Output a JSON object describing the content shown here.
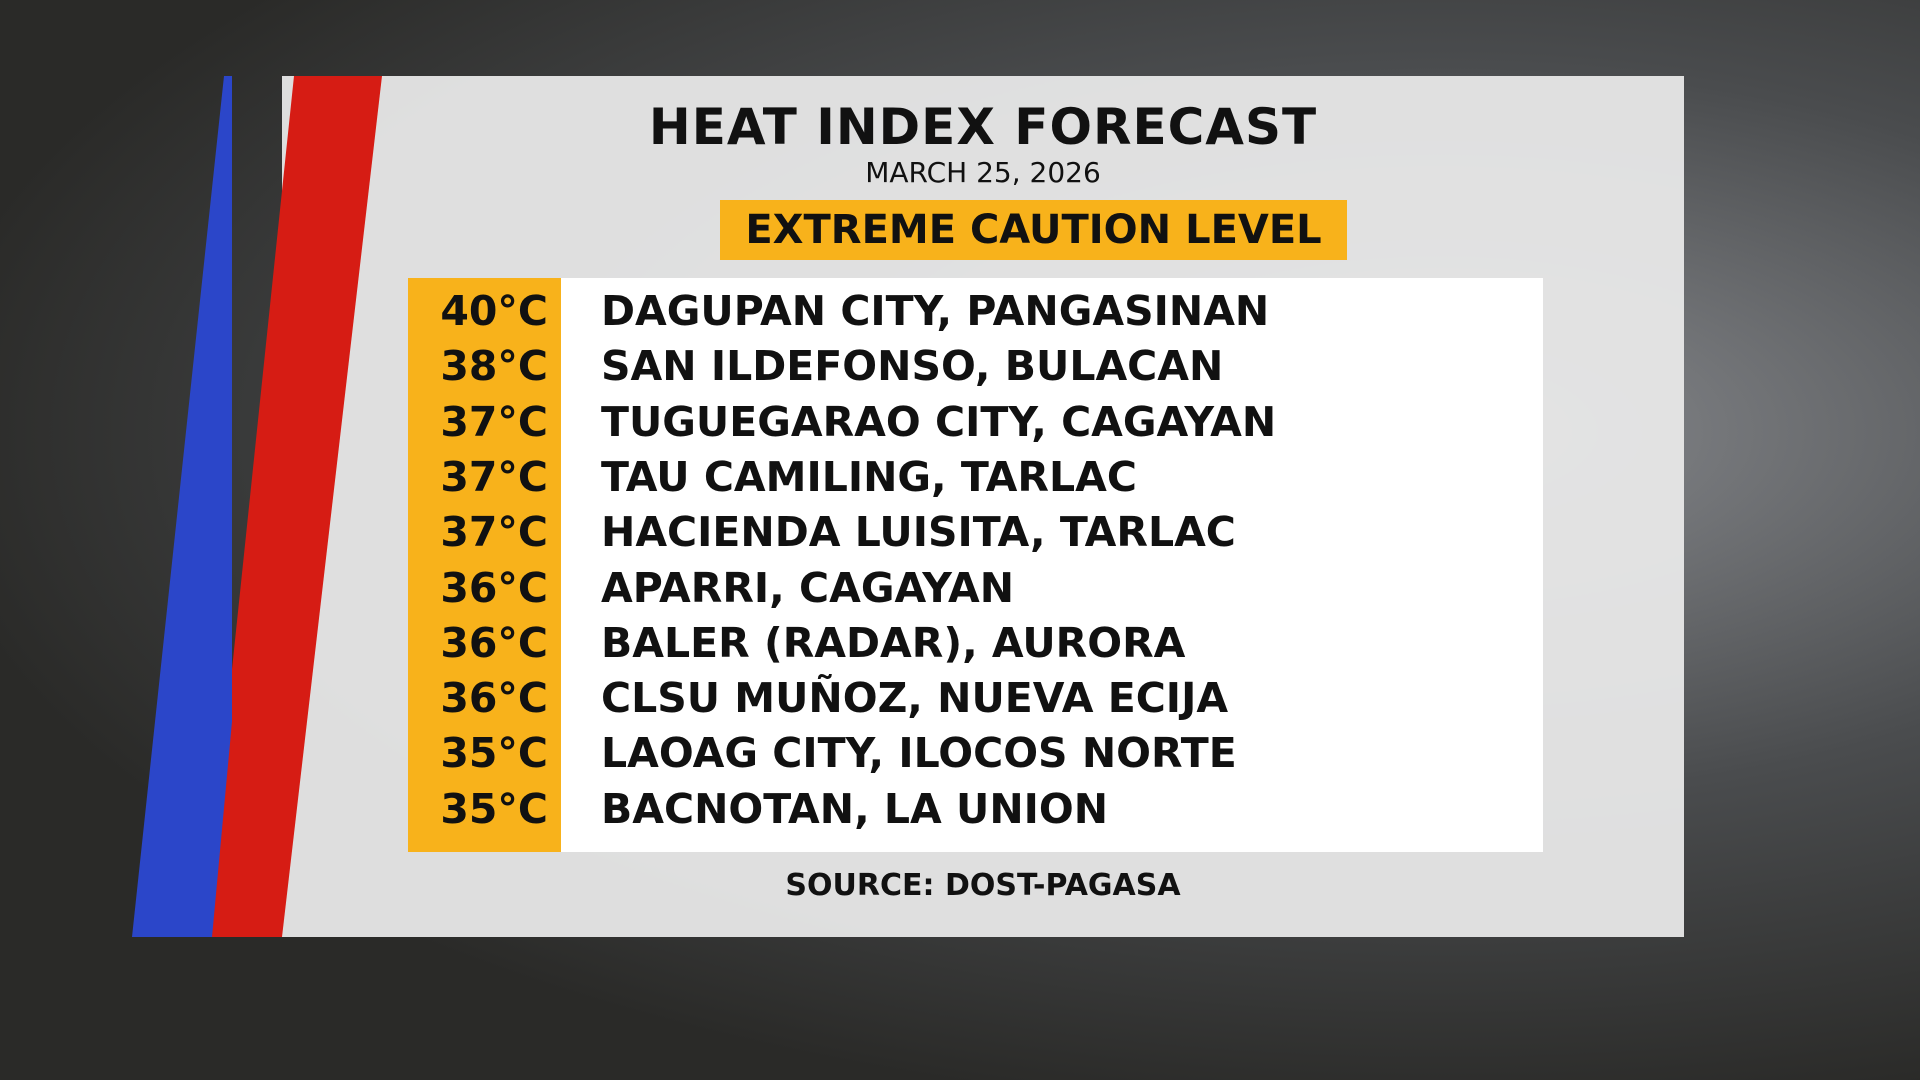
{
  "header": {
    "title": "HEAT INDEX FORECAST",
    "date": "MARCH 25, 2026",
    "level": "EXTREME CAUTION LEVEL"
  },
  "table": {
    "rows": [
      [
        "40°C",
        "DAGUPAN CITY, PANGASINAN"
      ],
      [
        "38°C",
        "SAN ILDEFONSO, BULACAN"
      ],
      [
        "37°C",
        "TUGUEGARAO CITY, CAGAYAN"
      ],
      [
        "37°C",
        "TAU CAMILING, TARLAC"
      ],
      [
        "37°C",
        "HACIENDA LUISITA, TARLAC"
      ],
      [
        "36°C",
        "APARRI, CAGAYAN"
      ],
      [
        "36°C",
        "BALER (RADAR), AURORA"
      ],
      [
        "36°C",
        "CLSU MUÑOZ, NUEVA ECIJA"
      ],
      [
        "35°C",
        "LAOAG CITY, ILOCOS NORTE"
      ],
      [
        "35°C",
        "BACNOTAN, LA UNION"
      ]
    ]
  },
  "footer": {
    "source": "SOURCE: DOST-PAGASA"
  }
}
